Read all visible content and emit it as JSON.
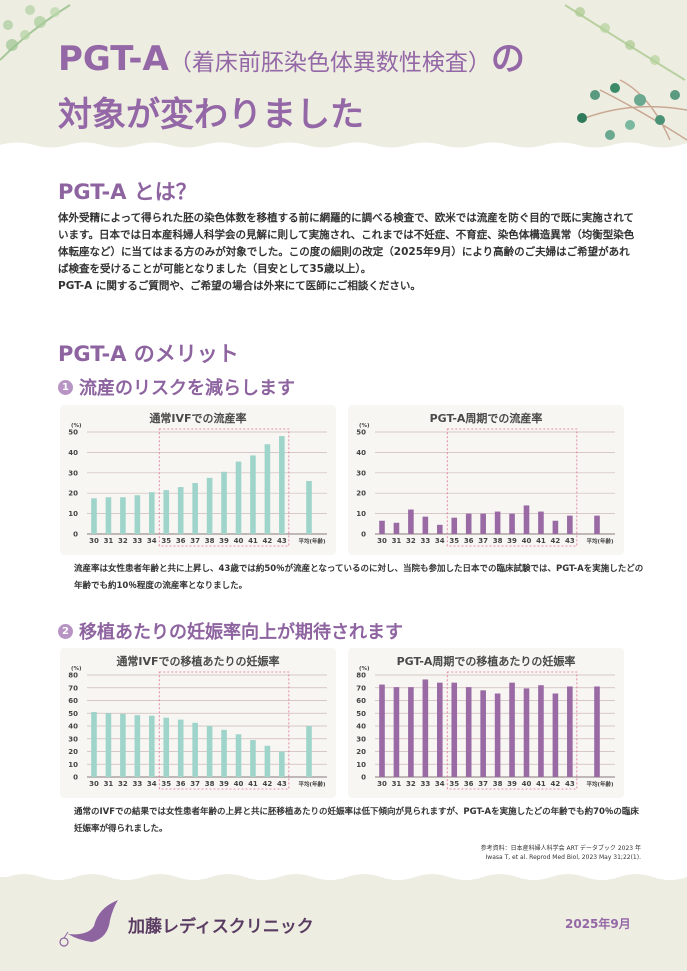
{
  "header": {
    "title_main": "PGT-A",
    "title_paren": "（着床前胚染色体異数性検査）",
    "title_no": "の",
    "title_line2": "対象が変わりました"
  },
  "section1": {
    "heading": "PGT-A とは？",
    "paragraphs": [
      "体外受精によって得られた胚の染色体数を移植する前に網羅的に調べる検査で、欧米では流産を防ぐ目的で既に実施されています。日本では日本産科婦人科学会の見解に則して実施され、これまでは不妊症、不育症、染色体構造異常（均衡型染色体転座など）に当てはまる方のみが対象でした。この度の細則の改定（2025年9月）により高齢のご夫婦はご希望があれば検査を受けることが可能となりました（目安として35歳以上）。",
      "PGT-A に関するご質問や、ご希望の場合は外来にて医師にご相談ください。"
    ]
  },
  "section2": {
    "heading": "PGT-A のメリット",
    "point1": {
      "num": "1",
      "label": "流産のリスクを減らします",
      "note": "流産率は女性患者年齢と共に上昇し、43歳では約50％が流産となっているのに対し、当院も参加した日本での臨床試験では、PGT-Aを実施したどの年齢でも約10％程度の流産率となりました。"
    },
    "point2": {
      "num": "2",
      "label": "移植あたりの妊娠率向上が期待されます",
      "note": "通常のIVFでの結果では女性患者年齢の上昇と共に胚移植あたりの妊娠率は低下傾向が見られますが、PGT-Aを実施したどの年齢でも約70％の臨床妊娠率が得られました。"
    }
  },
  "reference": {
    "line1": "参考資料：日本産科婦人科学会 ART データブック 2023 年",
    "line2": "Iwasa T, et al. Reprod Med Biol, 2023 May 31;22(1)."
  },
  "footer": {
    "clinic": "加藤レディスクリニック",
    "date": "2025年9月"
  },
  "colors": {
    "purple": "#9467a6",
    "teal": "#9fd4cb",
    "bar_purple": "#9a6aa5",
    "highlight_box": "#e0709a",
    "background": "#eeede2"
  },
  "chart_data": [
    {
      "type": "bar",
      "title": "通常IVFでの流産率",
      "ylabel": "(%)",
      "ylim": [
        0,
        50
      ],
      "yticks": [
        0,
        10,
        20,
        30,
        40,
        50
      ],
      "color": "#9fd4cb",
      "categories": [
        "30",
        "31",
        "32",
        "33",
        "34",
        "35",
        "36",
        "37",
        "38",
        "39",
        "40",
        "41",
        "42",
        "43",
        "平均(年齢)"
      ],
      "values": [
        17.5,
        18,
        18,
        19,
        20.5,
        21.5,
        23,
        25,
        27.5,
        30.5,
        35.5,
        38.5,
        44,
        48,
        26
      ],
      "highlight_range": [
        "35",
        "43"
      ],
      "grid": true
    },
    {
      "type": "bar",
      "title": "PGT-A周期での流産率",
      "ylabel": "(%)",
      "ylim": [
        0,
        50
      ],
      "yticks": [
        0,
        10,
        20,
        30,
        40,
        50
      ],
      "color": "#9a6aa5",
      "categories": [
        "30",
        "31",
        "32",
        "33",
        "34",
        "35",
        "36",
        "37",
        "38",
        "39",
        "40",
        "41",
        "42",
        "43",
        "平均(年齢)"
      ],
      "values": [
        6.5,
        5.5,
        12,
        8.5,
        4.5,
        8,
        10,
        10,
        11,
        10,
        14,
        11,
        6.5,
        9,
        9
      ],
      "highlight_range": [
        "35",
        "43"
      ],
      "grid": true
    },
    {
      "type": "bar",
      "title": "通常IVFでの移植あたりの妊娠率",
      "ylabel": "(%)",
      "ylim": [
        0,
        80
      ],
      "yticks": [
        0,
        10,
        20,
        30,
        40,
        50,
        60,
        70,
        80
      ],
      "color": "#9fd4cb",
      "categories": [
        "30",
        "31",
        "32",
        "33",
        "34",
        "35",
        "36",
        "37",
        "38",
        "39",
        "40",
        "41",
        "42",
        "43",
        "平均(年齢)"
      ],
      "values": [
        51,
        50,
        49.5,
        48.5,
        48,
        46.5,
        45,
        42.5,
        40,
        37,
        33.5,
        29,
        24.5,
        20,
        40
      ],
      "highlight_range": [
        "35",
        "43"
      ],
      "grid": true
    },
    {
      "type": "bar",
      "title": "PGT-A周期での移植あたりの妊娠率",
      "ylabel": "(%)",
      "ylim": [
        0,
        80
      ],
      "yticks": [
        0,
        10,
        20,
        30,
        40,
        50,
        60,
        70,
        80
      ],
      "color": "#9a6aa5",
      "categories": [
        "30",
        "31",
        "32",
        "33",
        "34",
        "35",
        "36",
        "37",
        "38",
        "39",
        "40",
        "41",
        "42",
        "43",
        "平均(年齢)"
      ],
      "values": [
        72.5,
        70.5,
        70.5,
        76.5,
        74,
        74,
        70.5,
        68,
        65.5,
        74,
        69.5,
        72,
        65.5,
        71,
        71
      ],
      "highlight_range": [
        "35",
        "43"
      ],
      "grid": true
    }
  ]
}
